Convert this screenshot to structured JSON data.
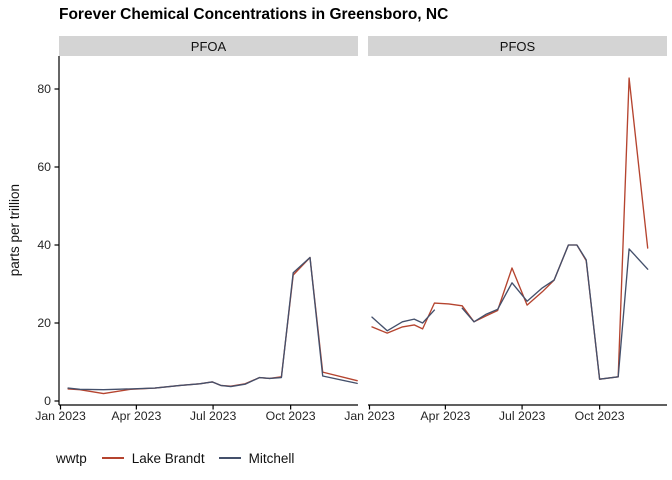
{
  "title": "Forever Chemical Concentrations in Greensboro, NC",
  "chart_data": {
    "type": "line",
    "title": "Forever Chemical Concentrations in Greensboro, NC",
    "xlabel": "",
    "ylabel": "parts per trillion",
    "ylim": [
      -1,
      87.5
    ],
    "yticks": [
      0,
      20,
      40,
      60,
      80
    ],
    "xtick_labels": [
      "Jan 2023",
      "Apr 2023",
      "Jul 2023",
      "Oct 2023"
    ],
    "xtick_days": [
      0,
      90,
      181,
      273
    ],
    "grid": false,
    "legend_position": "bottom",
    "legend": {
      "title": "wwtp",
      "entries": [
        {
          "label": "Lake Brandt",
          "color": "#B5442F"
        },
        {
          "label": "Mitchell",
          "color": "#44506B"
        }
      ]
    },
    "facets": [
      {
        "label": "PFOA",
        "series": [
          {
            "name": "Lake Brandt",
            "color": "#B5442F",
            "points": [
              [
                "2023-01-10",
                3.1
              ],
              [
                "2023-01-24",
                2.9
              ],
              [
                "2023-02-21",
                1.9
              ],
              [
                "2023-03-25",
                3.0
              ],
              [
                "2023-04-23",
                3.3
              ],
              [
                "2023-05-23",
                4.0
              ],
              [
                "2023-06-15",
                4.4
              ],
              [
                "2023-06-30",
                4.9
              ],
              [
                "2023-07-10",
                4.0
              ],
              [
                "2023-07-22",
                3.8
              ],
              [
                "2023-08-08",
                4.4
              ],
              [
                "2023-08-25",
                6.0
              ],
              [
                "2023-09-06",
                5.8
              ],
              [
                "2023-09-20",
                6.2
              ],
              [
                "2023-10-04",
                32.3
              ],
              [
                "2023-10-24",
                36.8
              ],
              [
                "2023-11-08",
                7.4
              ],
              [
                "2023-12-19",
                5.2
              ]
            ]
          },
          {
            "name": "Mitchell",
            "color": "#44506B",
            "points": [
              [
                "2023-01-10",
                3.3
              ],
              [
                "2023-01-24",
                3.0
              ],
              [
                "2023-02-21",
                2.9
              ],
              [
                "2023-03-25",
                3.1
              ],
              [
                "2023-04-23",
                3.3
              ],
              [
                "2023-05-23",
                4.0
              ],
              [
                "2023-06-15",
                4.4
              ],
              [
                "2023-06-30",
                4.9
              ],
              [
                "2023-07-10",
                4.0
              ],
              [
                "2023-07-22",
                3.7
              ],
              [
                "2023-08-08",
                4.3
              ],
              [
                "2023-08-25",
                6.0
              ],
              [
                "2023-09-06",
                5.8
              ],
              [
                "2023-09-20",
                6.0
              ],
              [
                "2023-10-04",
                32.9
              ],
              [
                "2023-10-24",
                36.8
              ],
              [
                "2023-11-08",
                6.4
              ],
              [
                "2023-12-19",
                4.5
              ]
            ]
          }
        ]
      },
      {
        "label": "PFOS",
        "series": [
          {
            "name": "Lake Brandt",
            "color": "#B5442F",
            "points": [
              [
                "2023-01-04",
                19.0
              ],
              [
                "2023-01-22",
                17.4
              ],
              [
                "2023-02-09",
                19.0
              ],
              [
                "2023-02-23",
                19.5
              ],
              [
                "2023-03-05",
                18.5
              ],
              [
                "2023-03-19",
                25.1
              ],
              [
                "2023-04-05",
                24.9
              ],
              [
                "2023-04-21",
                24.4
              ],
              [
                "2023-05-05",
                20.3
              ],
              [
                "2023-05-19",
                21.8
              ],
              [
                "2023-06-02",
                23.2
              ],
              [
                "2023-06-19",
                34.1
              ],
              [
                "2023-07-07",
                24.6
              ],
              [
                "2023-07-25",
                28.0
              ],
              [
                "2023-08-08",
                31.0
              ],
              [
                "2023-08-25",
                40.0
              ],
              [
                "2023-09-04",
                40.0
              ],
              [
                "2023-09-15",
                36.0
              ],
              [
                "2023-10-01",
                5.6
              ],
              [
                "2023-10-23",
                6.2
              ],
              [
                "2023-11-05",
                82.8
              ],
              [
                "2023-11-27",
                39.2
              ]
            ]
          },
          {
            "name": "Mitchell",
            "color": "#44506B",
            "points": [
              [
                "2023-01-04",
                21.5
              ],
              [
                "2023-01-22",
                18.0
              ],
              [
                "2023-02-09",
                20.3
              ],
              [
                "2023-02-23",
                21.0
              ],
              [
                "2023-03-05",
                20.0
              ],
              [
                "2023-03-19",
                23.3
              ],
              [
                "2023-04-05",
                null
              ],
              [
                "2023-04-21",
                23.8
              ],
              [
                "2023-05-05",
                20.3
              ],
              [
                "2023-05-19",
                22.2
              ],
              [
                "2023-06-02",
                23.5
              ],
              [
                "2023-06-19",
                30.3
              ],
              [
                "2023-07-07",
                25.6
              ],
              [
                "2023-07-25",
                29.0
              ],
              [
                "2023-08-08",
                31.0
              ],
              [
                "2023-08-25",
                40.0
              ],
              [
                "2023-09-04",
                40.0
              ],
              [
                "2023-09-15",
                36.2
              ],
              [
                "2023-10-01",
                5.6
              ],
              [
                "2023-10-23",
                6.2
              ],
              [
                "2023-11-05",
                39.0
              ],
              [
                "2023-11-27",
                33.8
              ]
            ]
          }
        ]
      }
    ]
  }
}
